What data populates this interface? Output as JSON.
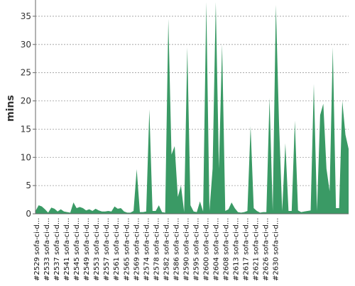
{
  "chart_data": {
    "type": "area",
    "title": "",
    "xlabel": "",
    "ylabel": "mins",
    "ylim": [
      0,
      37.5
    ],
    "yticks": [
      0,
      5,
      10,
      15,
      20,
      25,
      30,
      35
    ],
    "grid": true,
    "legend": "none",
    "color": "#3a9a65",
    "x_tick_labels": [
      "#2529 sofa-ci-d...",
      "#2533 sofa-ci-d...",
      "#2537 sofa-ci-d...",
      "#2541 sofa-ci-d...",
      "#2545 sofa-ci-d...",
      "#2549 sofa-ci-d...",
      "#2553 sofa-ci-d...",
      "#2557 sofa-ci-d...",
      "#2561 sofa-ci-d...",
      "#2565 sofa-ci-d...",
      "#2569 sofa-ci-d...",
      "#2574 sofa-ci-d...",
      "#2578 sofa-ci-d...",
      "#2582 sofa-ci-d...",
      "#2586 sofa-ci-d...",
      "#2590 sofa-ci-d...",
      "#2595 sofa-ci-d...",
      "#2600 sofa-ci-d...",
      "#2604 sofa-ci-d...",
      "#2608 sofa-ci-d...",
      "#2613 sofa-ci-d...",
      "#2617 sofa-ci-d...",
      "#2621 sofa-ci-d...",
      "#2626 sofa-ci-d...",
      "#2630 sofa-ci-d..."
    ],
    "values": [
      0.5,
      1.5,
      1.3,
      0.8,
      0.2,
      1.1,
      0.9,
      0.4,
      0.8,
      0.4,
      0.3,
      0.2,
      2.0,
      1.0,
      1.2,
      1.0,
      0.6,
      0.8,
      0.5,
      0.9,
      0.6,
      0.4,
      0.4,
      0.5,
      0.4,
      1.3,
      0.9,
      1.0,
      0.4,
      0.2,
      0.2,
      0.5,
      7.9,
      0.3,
      0.3,
      0.4,
      18.5,
      0.5,
      0.5,
      1.5,
      0.3,
      0.2,
      34.5,
      10.5,
      12.0,
      3.0,
      5.0,
      0.3,
      29.5,
      1.5,
      0.4,
      0.3,
      2.2,
      0.4,
      37.5,
      0.5,
      8.0,
      37.5,
      8.0,
      30.0,
      0.5,
      0.8,
      2.0,
      1.0,
      0.3,
      0.2,
      0.3,
      0.5,
      15.5,
      1.0,
      0.5,
      0.2,
      0.3,
      0.3,
      20.5,
      0.5,
      37.0,
      16.0,
      0.5,
      12.5,
      0.5,
      0.5,
      16.5,
      0.6,
      0.3,
      0.4,
      0.5,
      0.6,
      23.0,
      0.5,
      17.5,
      19.5,
      8.0,
      4.0,
      29.5,
      1.0,
      1.0,
      20.0,
      14.0,
      11.5
    ]
  }
}
